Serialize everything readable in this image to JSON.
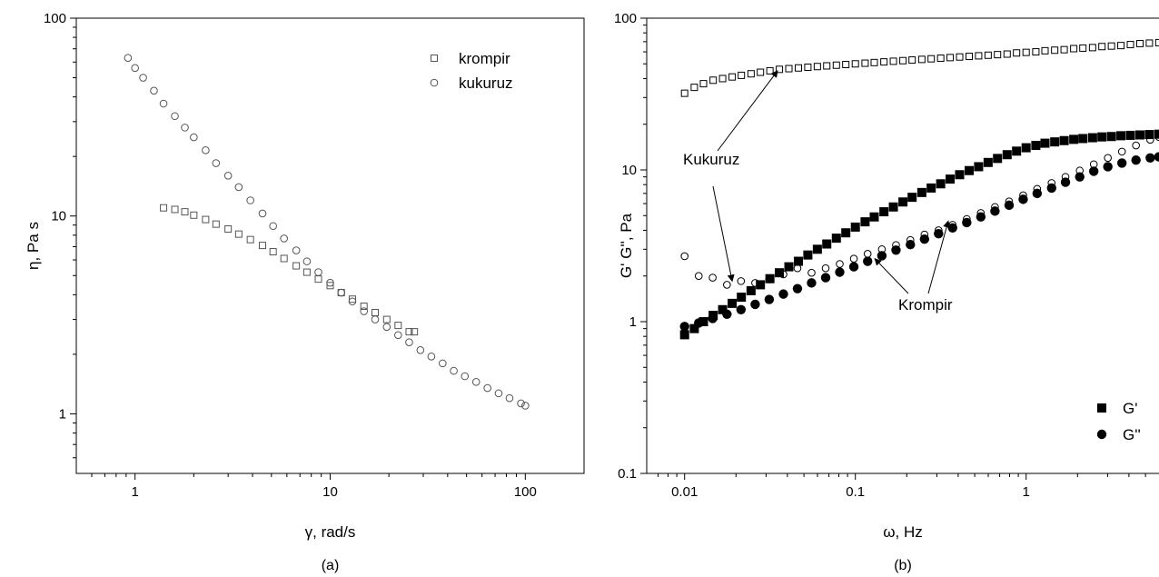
{
  "chart_data": [
    {
      "id": "a",
      "type": "scatter",
      "panel_label": "(a)",
      "xlabel": "γ, rad/s",
      "ylabel": "η, Pa s",
      "xscale": "log",
      "yscale": "log",
      "xlim": [
        0.5,
        200
      ],
      "ylim": [
        0.5,
        100
      ],
      "x_ticks": [
        1,
        10,
        100
      ],
      "x_tick_labels": [
        "1",
        "10",
        "100"
      ],
      "y_ticks": [
        1,
        10,
        100
      ],
      "y_tick_labels": [
        "1",
        "10",
        "100"
      ],
      "grid": false,
      "legend_position": "top-right",
      "marker_color": "#555555",
      "series": [
        {
          "name": "krompir",
          "marker": "open-square",
          "x_range": [
            1.4,
            27
          ],
          "points": [
            [
              1.4,
              11.0
            ],
            [
              1.6,
              10.8
            ],
            [
              1.8,
              10.5
            ],
            [
              2.0,
              10.1
            ],
            [
              2.3,
              9.6
            ],
            [
              2.6,
              9.1
            ],
            [
              3.0,
              8.6
            ],
            [
              3.4,
              8.1
            ],
            [
              3.9,
              7.6
            ],
            [
              4.5,
              7.1
            ],
            [
              5.1,
              6.6
            ],
            [
              5.8,
              6.1
            ],
            [
              6.7,
              5.6
            ],
            [
              7.6,
              5.2
            ],
            [
              8.7,
              4.8
            ],
            [
              10.0,
              4.45
            ],
            [
              11.4,
              4.1
            ],
            [
              13.0,
              3.8
            ],
            [
              14.9,
              3.5
            ],
            [
              17.0,
              3.25
            ],
            [
              19.5,
              3.0
            ],
            [
              22.3,
              2.8
            ],
            [
              25.4,
              2.6
            ],
            [
              27,
              2.6
            ]
          ]
        },
        {
          "name": "kukuruz",
          "marker": "open-circle",
          "x_range": [
            0.9,
            100
          ],
          "points": [
            [
              0.92,
              63
            ],
            [
              1.0,
              56
            ],
            [
              1.1,
              50
            ],
            [
              1.25,
              43
            ],
            [
              1.4,
              37
            ],
            [
              1.6,
              32
            ],
            [
              1.8,
              28
            ],
            [
              2.0,
              25
            ],
            [
              2.3,
              21.5
            ],
            [
              2.6,
              18.5
            ],
            [
              3.0,
              16
            ],
            [
              3.4,
              14
            ],
            [
              3.9,
              12
            ],
            [
              4.5,
              10.3
            ],
            [
              5.1,
              8.9
            ],
            [
              5.8,
              7.7
            ],
            [
              6.7,
              6.7
            ],
            [
              7.6,
              5.9
            ],
            [
              8.7,
              5.2
            ],
            [
              10.0,
              4.6
            ],
            [
              11.4,
              4.1
            ],
            [
              13.0,
              3.7
            ],
            [
              14.9,
              3.3
            ],
            [
              17.0,
              3.0
            ],
            [
              19.5,
              2.75
            ],
            [
              22.3,
              2.5
            ],
            [
              25.4,
              2.3
            ],
            [
              29.0,
              2.1
            ],
            [
              33.0,
              1.95
            ],
            [
              37.7,
              1.8
            ],
            [
              43.0,
              1.65
            ],
            [
              49.0,
              1.55
            ],
            [
              56.0,
              1.45
            ],
            [
              64.0,
              1.35
            ],
            [
              73.0,
              1.27
            ],
            [
              83.0,
              1.2
            ],
            [
              95.0,
              1.13
            ],
            [
              100,
              1.1
            ]
          ]
        }
      ]
    },
    {
      "id": "b",
      "type": "scatter",
      "panel_label": "(b)",
      "xlabel": "ω, Hz",
      "ylabel": "G' G'', Pa",
      "xscale": "log",
      "yscale": "log",
      "xlim": [
        0.006,
        6
      ],
      "ylim": [
        0.1,
        100
      ],
      "x_ticks": [
        0.01,
        0.1,
        1
      ],
      "x_tick_labels": [
        "0.01",
        "0.1",
        "1"
      ],
      "y_ticks": [
        0.1,
        1,
        10,
        100
      ],
      "y_tick_labels": [
        "0.1",
        "1",
        "10",
        "100"
      ],
      "grid": false,
      "legend_position": "bottom-right",
      "legend": [
        {
          "label": "G'",
          "marker": "filled-square"
        },
        {
          "label": "G''",
          "marker": "filled-circle"
        }
      ],
      "annotations": [
        {
          "text": "Kukuruz",
          "arrows_to": [
            [
              0.035,
              45
            ],
            [
              0.019,
              1.85
            ]
          ]
        },
        {
          "text": "Krompir",
          "arrows_to": [
            [
              0.13,
              2.6
            ],
            [
              0.35,
              4.6
            ]
          ]
        }
      ],
      "series": [
        {
          "name": "",
          "marker": "open-square",
          "points": [
            [
              0.01,
              32
            ],
            [
              0.0114,
              35
            ],
            [
              0.0129,
              37
            ],
            [
              0.0147,
              39
            ],
            [
              0.0167,
              40
            ],
            [
              0.019,
              41
            ],
            [
              0.0215,
              42
            ],
            [
              0.0245,
              43
            ],
            [
              0.0278,
              44
            ],
            [
              0.0316,
              45
            ],
            [
              0.0359,
              46
            ],
            [
              0.0408,
              46.5
            ],
            [
              0.0464,
              47
            ],
            [
              0.0527,
              47.5
            ],
            [
              0.0599,
              48
            ],
            [
              0.068,
              48.5
            ],
            [
              0.0774,
              49
            ],
            [
              0.0879,
              49.5
            ],
            [
              0.1,
              50
            ],
            [
              0.114,
              50.5
            ],
            [
              0.129,
              51
            ],
            [
              0.147,
              51.5
            ],
            [
              0.167,
              52
            ],
            [
              0.19,
              52.5
            ],
            [
              0.215,
              53
            ],
            [
              0.245,
              53.5
            ],
            [
              0.278,
              54
            ],
            [
              0.316,
              54.5
            ],
            [
              0.359,
              55
            ],
            [
              0.408,
              55.5
            ],
            [
              0.464,
              56
            ],
            [
              0.527,
              56.5
            ],
            [
              0.599,
              57
            ],
            [
              0.68,
              57.5
            ],
            [
              0.774,
              58
            ],
            [
              0.879,
              59
            ],
            [
              1.0,
              59.5
            ],
            [
              1.14,
              60
            ],
            [
              1.29,
              61
            ],
            [
              1.47,
              61.5
            ],
            [
              1.67,
              62
            ],
            [
              1.9,
              63
            ],
            [
              2.15,
              63.5
            ],
            [
              2.45,
              64
            ],
            [
              2.78,
              65
            ],
            [
              3.16,
              65.5
            ],
            [
              3.59,
              66
            ],
            [
              4.08,
              67
            ],
            [
              4.64,
              68
            ],
            [
              5.27,
              68.5
            ],
            [
              5.99,
              69
            ]
          ]
        },
        {
          "name": "",
          "marker": "open-circle",
          "points": [
            [
              0.01,
              2.7
            ],
            [
              0.0121,
              2.0
            ],
            [
              0.0146,
              1.95
            ],
            [
              0.0177,
              1.75
            ],
            [
              0.0214,
              1.85
            ],
            [
              0.0259,
              1.8
            ],
            [
              0.0313,
              1.9
            ],
            [
              0.0379,
              2.05
            ],
            [
              0.0458,
              2.25
            ],
            [
              0.0554,
              2.1
            ],
            [
              0.067,
              2.25
            ],
            [
              0.081,
              2.4
            ],
            [
              0.098,
              2.6
            ],
            [
              0.118,
              2.8
            ],
            [
              0.143,
              3.0
            ],
            [
              0.173,
              3.2
            ],
            [
              0.21,
              3.45
            ],
            [
              0.254,
              3.75
            ],
            [
              0.307,
              4.0
            ],
            [
              0.371,
              4.35
            ],
            [
              0.449,
              4.75
            ],
            [
              0.543,
              5.2
            ],
            [
              0.657,
              5.7
            ],
            [
              0.795,
              6.2
            ],
            [
              0.961,
              6.8
            ],
            [
              1.16,
              7.5
            ],
            [
              1.41,
              8.2
            ],
            [
              1.7,
              9.0
            ],
            [
              2.06,
              9.9
            ],
            [
              2.49,
              10.9
            ],
            [
              3.01,
              12.0
            ],
            [
              3.64,
              13.2
            ],
            [
              4.4,
              14.5
            ],
            [
              5.33,
              15.8
            ],
            [
              5.99,
              16.5
            ]
          ]
        },
        {
          "name": "G'",
          "marker": "filled-square",
          "points": [
            [
              0.01,
              0.82
            ],
            [
              0.0114,
              0.9
            ],
            [
              0.0129,
              1.0
            ],
            [
              0.0147,
              1.1
            ],
            [
              0.0167,
              1.2
            ],
            [
              0.019,
              1.32
            ],
            [
              0.0215,
              1.45
            ],
            [
              0.0245,
              1.6
            ],
            [
              0.0278,
              1.75
            ],
            [
              0.0316,
              1.92
            ],
            [
              0.0359,
              2.1
            ],
            [
              0.0408,
              2.3
            ],
            [
              0.0464,
              2.5
            ],
            [
              0.0527,
              2.75
            ],
            [
              0.0599,
              3.0
            ],
            [
              0.068,
              3.25
            ],
            [
              0.0774,
              3.55
            ],
            [
              0.0879,
              3.85
            ],
            [
              0.1,
              4.2
            ],
            [
              0.114,
              4.55
            ],
            [
              0.129,
              4.9
            ],
            [
              0.147,
              5.3
            ],
            [
              0.167,
              5.7
            ],
            [
              0.19,
              6.15
            ],
            [
              0.215,
              6.6
            ],
            [
              0.245,
              7.1
            ],
            [
              0.278,
              7.6
            ],
            [
              0.316,
              8.1
            ],
            [
              0.359,
              8.7
            ],
            [
              0.408,
              9.3
            ],
            [
              0.464,
              9.9
            ],
            [
              0.527,
              10.5
            ],
            [
              0.599,
              11.2
            ],
            [
              0.68,
              11.9
            ],
            [
              0.774,
              12.6
            ],
            [
              0.879,
              13.3
            ],
            [
              1.0,
              14.0
            ],
            [
              1.14,
              14.5
            ],
            [
              1.29,
              15.0
            ],
            [
              1.47,
              15.3
            ],
            [
              1.67,
              15.6
            ],
            [
              1.9,
              15.9
            ],
            [
              2.15,
              16.1
            ],
            [
              2.45,
              16.3
            ],
            [
              2.78,
              16.5
            ],
            [
              3.16,
              16.6
            ],
            [
              3.59,
              16.8
            ],
            [
              4.08,
              16.9
            ],
            [
              4.64,
              17.0
            ],
            [
              5.27,
              17.1
            ],
            [
              5.99,
              17.2
            ]
          ]
        },
        {
          "name": "G''",
          "marker": "filled-circle",
          "points": [
            [
              0.01,
              0.93
            ],
            [
              0.0121,
              0.98
            ],
            [
              0.0146,
              1.05
            ],
            [
              0.0177,
              1.12
            ],
            [
              0.0214,
              1.2
            ],
            [
              0.0259,
              1.3
            ],
            [
              0.0313,
              1.4
            ],
            [
              0.0379,
              1.52
            ],
            [
              0.0458,
              1.65
            ],
            [
              0.0554,
              1.8
            ],
            [
              0.067,
              1.95
            ],
            [
              0.081,
              2.12
            ],
            [
              0.098,
              2.3
            ],
            [
              0.118,
              2.5
            ],
            [
              0.143,
              2.72
            ],
            [
              0.173,
              2.96
            ],
            [
              0.21,
              3.22
            ],
            [
              0.254,
              3.5
            ],
            [
              0.307,
              3.8
            ],
            [
              0.371,
              4.15
            ],
            [
              0.449,
              4.5
            ],
            [
              0.543,
              4.9
            ],
            [
              0.657,
              5.35
            ],
            [
              0.795,
              5.85
            ],
            [
              0.961,
              6.4
            ],
            [
              1.16,
              7.0
            ],
            [
              1.41,
              7.6
            ],
            [
              1.7,
              8.3
            ],
            [
              2.06,
              9.0
            ],
            [
              2.49,
              9.8
            ],
            [
              3.01,
              10.5
            ],
            [
              3.64,
              11.1
            ],
            [
              4.4,
              11.6
            ],
            [
              5.33,
              12.0
            ],
            [
              5.99,
              12.2
            ]
          ]
        }
      ]
    }
  ]
}
